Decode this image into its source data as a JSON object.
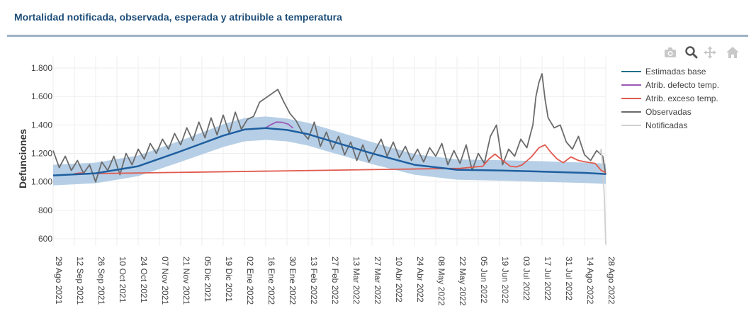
{
  "header": {
    "title": "Mortalidad notificada, observada, esperada y atribuible a temperatura"
  },
  "modebar": {
    "icons": [
      "camera-icon",
      "zoom-icon",
      "pan-icon",
      "home-icon"
    ]
  },
  "chart_data": {
    "type": "line",
    "ylabel": "Defunciones",
    "xlabel": "",
    "ylim": [
      550,
      1880
    ],
    "y_ticks": [
      600,
      800,
      1000,
      1200,
      1400,
      1600,
      1800
    ],
    "y_tick_labels": [
      "600",
      "800",
      "1.000",
      "1.200",
      "1.400",
      "1.600",
      "1.800"
    ],
    "x_range": [
      "2021-08-29",
      "2022-08-28"
    ],
    "x_tick_dates": [
      "2021-08-29",
      "2021-09-12",
      "2021-09-26",
      "2021-10-10",
      "2021-10-24",
      "2021-11-07",
      "2021-11-21",
      "2021-12-05",
      "2021-12-19",
      "2022-01-02",
      "2022-01-16",
      "2022-01-30",
      "2022-02-13",
      "2022-02-27",
      "2022-03-13",
      "2022-03-27",
      "2022-04-10",
      "2022-04-24",
      "2022-05-08",
      "2022-05-22",
      "2022-06-05",
      "2022-06-19",
      "2022-07-03",
      "2022-07-17",
      "2022-07-31",
      "2022-08-14",
      "2022-08-28"
    ],
    "x_tick_labels": [
      "29 Ago 2021",
      "12 Sep 2021",
      "26 Sep 2021",
      "10 Oct 2021",
      "24 Oct 2021",
      "07 Nov 2021",
      "21 Nov 2021",
      "05 Dic 2021",
      "19 Dic 2021",
      "02 Ene 2022",
      "16 Ene 2022",
      "30 Ene 2022",
      "13 Feb 2022",
      "27 Feb 2022",
      "13 Mar 2022",
      "27 Mar 2022",
      "10 Abr 2022",
      "24 Abr 2022",
      "08 May 2022",
      "22 May 2022",
      "05 Jun 2022",
      "19 Jun 2022",
      "03 Jul 2022",
      "17 Jul 2022",
      "31 Jul 2022",
      "14 Ago 2022",
      "28 Ago 2022"
    ],
    "grid": true,
    "legend_position": "right",
    "series": [
      {
        "name": "Estimadas base",
        "color": "#1f5fa0",
        "x": [
          "2021-08-29",
          "2021-09-26",
          "2021-10-24",
          "2021-11-21",
          "2021-12-19",
          "2022-01-02",
          "2022-01-16",
          "2022-01-30",
          "2022-02-13",
          "2022-02-27",
          "2022-03-27",
          "2022-04-24",
          "2022-05-22",
          "2022-06-19",
          "2022-07-17",
          "2022-08-14",
          "2022-08-28"
        ],
        "y": [
          1045,
          1060,
          1110,
          1215,
          1325,
          1368,
          1378,
          1365,
          1335,
          1290,
          1200,
          1120,
          1085,
          1080,
          1072,
          1063,
          1055
        ]
      },
      {
        "name": "Atrib. defecto temp.",
        "color": "#9b59b6",
        "x": [
          "2022-01-16",
          "2022-01-19",
          "2022-01-23",
          "2022-01-27",
          "2022-01-31",
          "2022-02-03"
        ],
        "y": [
          1380,
          1400,
          1420,
          1418,
          1405,
          1378
        ]
      },
      {
        "name": "Atrib. exceso temp.",
        "color": "#e05a4f",
        "x": [
          "2021-09-12",
          "2021-09-16",
          "2021-09-20",
          "2022-05-24",
          "2022-06-08",
          "2022-06-12",
          "2022-06-16",
          "2022-06-20",
          "2022-06-26",
          "2022-06-30",
          "2022-07-04",
          "2022-07-10",
          "2022-07-15",
          "2022-07-19",
          "2022-07-23",
          "2022-07-27",
          "2022-07-31",
          "2022-08-05",
          "2022-08-10",
          "2022-08-15",
          "2022-08-21",
          "2022-08-25",
          "2022-08-28"
        ],
        "y": [
          1058,
          1062,
          1057,
          1095,
          1110,
          1160,
          1195,
          1160,
          1110,
          1105,
          1120,
          1175,
          1240,
          1260,
          1205,
          1160,
          1135,
          1175,
          1150,
          1140,
          1130,
          1080,
          1065
        ]
      },
      {
        "name": "Observadas",
        "color": "#6b6b6b",
        "x": [
          "2021-08-29",
          "2021-09-02",
          "2021-09-06",
          "2021-09-10",
          "2021-09-14",
          "2021-09-18",
          "2021-09-22",
          "2021-09-26",
          "2021-09-30",
          "2021-10-04",
          "2021-10-08",
          "2021-10-12",
          "2021-10-16",
          "2021-10-20",
          "2021-10-24",
          "2021-10-28",
          "2021-11-01",
          "2021-11-05",
          "2021-11-09",
          "2021-11-13",
          "2021-11-17",
          "2021-11-21",
          "2021-11-25",
          "2021-11-29",
          "2021-12-03",
          "2021-12-07",
          "2021-12-11",
          "2021-12-15",
          "2021-12-19",
          "2021-12-23",
          "2021-12-27",
          "2021-12-31",
          "2022-01-04",
          "2022-01-08",
          "2022-01-12",
          "2022-01-16",
          "2022-01-20",
          "2022-01-24",
          "2022-01-28",
          "2022-02-01",
          "2022-02-05",
          "2022-02-09",
          "2022-02-13",
          "2022-02-17",
          "2022-02-21",
          "2022-02-25",
          "2022-03-01",
          "2022-03-05",
          "2022-03-09",
          "2022-03-13",
          "2022-03-17",
          "2022-03-21",
          "2022-03-25",
          "2022-03-29",
          "2022-04-02",
          "2022-04-06",
          "2022-04-10",
          "2022-04-14",
          "2022-04-18",
          "2022-04-22",
          "2022-04-26",
          "2022-04-30",
          "2022-05-04",
          "2022-05-08",
          "2022-05-12",
          "2022-05-16",
          "2022-05-20",
          "2022-05-24",
          "2022-05-28",
          "2022-06-01",
          "2022-06-05",
          "2022-06-09",
          "2022-06-13",
          "2022-06-17",
          "2022-06-21",
          "2022-06-25",
          "2022-06-29",
          "2022-07-03",
          "2022-07-07",
          "2022-07-11",
          "2022-07-13",
          "2022-07-15",
          "2022-07-17",
          "2022-07-19",
          "2022-07-21",
          "2022-07-25",
          "2022-07-29",
          "2022-08-02",
          "2022-08-06",
          "2022-08-10",
          "2022-08-14",
          "2022-08-18",
          "2022-08-22",
          "2022-08-26",
          "2022-08-28"
        ],
        "y": [
          1220,
          1100,
          1180,
          1080,
          1150,
          1060,
          1120,
          1000,
          1140,
          1080,
          1180,
          1050,
          1200,
          1120,
          1230,
          1160,
          1270,
          1200,
          1300,
          1230,
          1340,
          1260,
          1380,
          1290,
          1420,
          1310,
          1450,
          1330,
          1470,
          1340,
          1490,
          1370,
          1440,
          1460,
          1560,
          1590,
          1620,
          1650,
          1560,
          1480,
          1430,
          1350,
          1300,
          1420,
          1250,
          1350,
          1230,
          1320,
          1190,
          1280,
          1150,
          1260,
          1140,
          1220,
          1300,
          1180,
          1280,
          1170,
          1250,
          1150,
          1230,
          1140,
          1240,
          1180,
          1270,
          1120,
          1220,
          1130,
          1260,
          1080,
          1200,
          1130,
          1320,
          1400,
          1120,
          1230,
          1180,
          1300,
          1240,
          1400,
          1600,
          1700,
          1760,
          1580,
          1450,
          1380,
          1400,
          1280,
          1230,
          1320,
          1190,
          1150,
          1220,
          1180,
          1050
        ]
      },
      {
        "name": "Notificadas",
        "color": "#d0d0d0",
        "x": [
          "2022-08-24",
          "2022-08-25",
          "2022-08-26",
          "2022-08-27",
          "2022-08-28"
        ],
        "y": [
          1200,
          1230,
          1100,
          900,
          560
        ]
      }
    ],
    "band": {
      "x": [
        "2021-08-29",
        "2021-09-26",
        "2021-10-24",
        "2021-11-21",
        "2021-12-19",
        "2022-01-02",
        "2022-01-16",
        "2022-01-30",
        "2022-02-13",
        "2022-02-27",
        "2022-03-27",
        "2022-04-24",
        "2022-05-22",
        "2022-06-19",
        "2022-07-17",
        "2022-08-14",
        "2022-08-28"
      ],
      "lower": [
        975,
        990,
        1040,
        1140,
        1245,
        1285,
        1295,
        1285,
        1255,
        1210,
        1125,
        1050,
        1015,
        1008,
        1000,
        992,
        985
      ],
      "upper": [
        1120,
        1135,
        1185,
        1290,
        1405,
        1448,
        1460,
        1445,
        1415,
        1370,
        1280,
        1195,
        1158,
        1152,
        1145,
        1135,
        1128
      ],
      "color": "#a9c7e2"
    }
  }
}
